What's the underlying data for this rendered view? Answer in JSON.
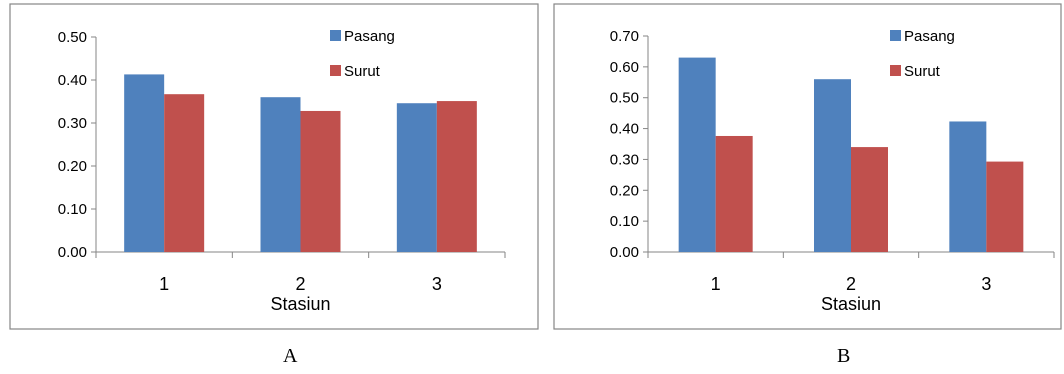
{
  "chart_data": [
    {
      "type": "bar",
      "categories": [
        "1",
        "2",
        "3"
      ],
      "series": [
        {
          "name": "Pasang",
          "values": [
            0.413,
            0.36,
            0.346
          ]
        },
        {
          "name": "Surut",
          "values": [
            0.367,
            0.328,
            0.351
          ]
        }
      ],
      "xlabel": "Stasiun",
      "ylabel": "",
      "ylim": [
        0,
        0.5
      ],
      "yticks": [
        "0.00",
        "0.10",
        "0.20",
        "0.30",
        "0.40",
        "0.50"
      ],
      "legend": "top-right",
      "grid": false,
      "caption": "A"
    },
    {
      "type": "bar",
      "categories": [
        "1",
        "2",
        "3"
      ],
      "series": [
        {
          "name": "Pasang",
          "values": [
            0.63,
            0.56,
            0.423
          ]
        },
        {
          "name": "Surut",
          "values": [
            0.376,
            0.34,
            0.293
          ]
        }
      ],
      "xlabel": "Stasiun",
      "ylabel": "",
      "ylim": [
        0,
        0.7
      ],
      "yticks": [
        "0.00",
        "0.10",
        "0.20",
        "0.30",
        "0.40",
        "0.50",
        "0.60",
        "0.70"
      ],
      "legend": "top-right",
      "grid": false,
      "caption": "B"
    }
  ],
  "colors": {
    "Pasang": "#4F81BD",
    "Surut": "#C0504D",
    "frame": "#868686",
    "axis": "#868686"
  }
}
